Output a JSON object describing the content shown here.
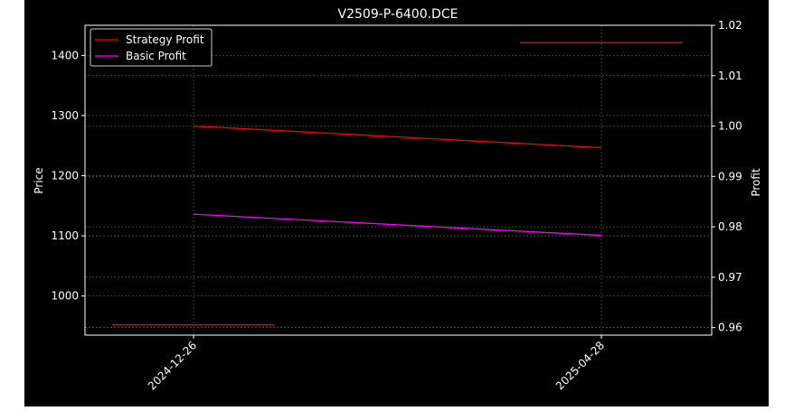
{
  "chart_data": {
    "type": "line",
    "title": "V2509-P-6400.DCE",
    "ylabel_left": "Price",
    "ylabel_right": "Profit",
    "x_dates": [
      "2024-12-26",
      "2025-04-28"
    ],
    "x_ticks": [
      "2024-12-26",
      "2025-04-28"
    ],
    "y_left": {
      "ticks": [
        1000,
        1100,
        1200,
        1300,
        1400
      ],
      "range": [
        935,
        1450
      ]
    },
    "y_right": {
      "ticks": [
        "0.96",
        "0.97",
        "0.98",
        "0.99",
        "1.00",
        "1.01",
        "1.02"
      ],
      "range": [
        0.9585,
        1.02
      ]
    },
    "price_bars": [
      {
        "name": "Strategy Profit",
        "x": "2025-04-28",
        "y": 1421,
        "color": "#ff0000"
      },
      {
        "name": "Basic Profit",
        "x": "2024-12-26",
        "y": 952,
        "color": "#ff0000"
      }
    ],
    "series": [
      {
        "name": "Strategy Profit",
        "color": "#ff0000",
        "x": [
          "2024-12-26",
          "2025-04-28"
        ],
        "values": [
          1.0,
          0.9957
        ]
      },
      {
        "name": "Basic Profit",
        "color": "#ff00ff",
        "x": [
          "2024-12-26",
          "2025-04-28"
        ],
        "values": [
          0.9825,
          0.9783
        ]
      }
    ],
    "grid": true,
    "legend": "top-left",
    "colors": {
      "background": "#000000",
      "foreground": "#ffffff",
      "grid": "#555555"
    }
  }
}
